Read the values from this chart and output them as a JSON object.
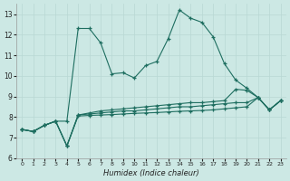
{
  "xlabel": "Humidex (Indice chaleur)",
  "bg_color": "#cce8e4",
  "line_color": "#1e6e60",
  "grid_color": "#b8d8d4",
  "xlim": [
    -0.5,
    23.5
  ],
  "ylim": [
    6,
    13.5
  ],
  "xticks": [
    0,
    1,
    2,
    3,
    4,
    5,
    6,
    7,
    8,
    9,
    10,
    11,
    12,
    13,
    14,
    15,
    16,
    17,
    18,
    19,
    20,
    21,
    22,
    23
  ],
  "yticks": [
    6,
    7,
    8,
    9,
    10,
    11,
    12,
    13
  ],
  "series": [
    [
      7.4,
      7.3,
      7.6,
      7.8,
      7.8,
      12.3,
      12.3,
      11.6,
      10.1,
      10.15,
      9.9,
      10.5,
      10.7,
      11.8,
      13.2,
      12.8,
      12.6,
      11.9,
      10.6,
      9.8,
      9.4,
      8.95,
      8.35,
      8.8
    ],
    [
      7.4,
      7.3,
      7.6,
      7.8,
      6.6,
      8.1,
      8.2,
      8.3,
      8.35,
      8.4,
      8.45,
      8.5,
      8.55,
      8.6,
      8.65,
      8.7,
      8.7,
      8.75,
      8.8,
      9.35,
      9.3,
      8.95,
      8.35,
      8.8
    ],
    [
      7.4,
      7.3,
      7.6,
      7.8,
      6.6,
      8.1,
      8.15,
      8.2,
      8.25,
      8.3,
      8.3,
      8.35,
      8.4,
      8.45,
      8.5,
      8.5,
      8.55,
      8.6,
      8.65,
      8.7,
      8.7,
      8.95,
      8.35,
      8.8
    ],
    [
      7.4,
      7.3,
      7.6,
      7.8,
      6.6,
      8.05,
      8.08,
      8.1,
      8.12,
      8.15,
      8.18,
      8.2,
      8.22,
      8.25,
      8.28,
      8.3,
      8.32,
      8.35,
      8.4,
      8.45,
      8.5,
      8.95,
      8.35,
      8.8
    ]
  ]
}
